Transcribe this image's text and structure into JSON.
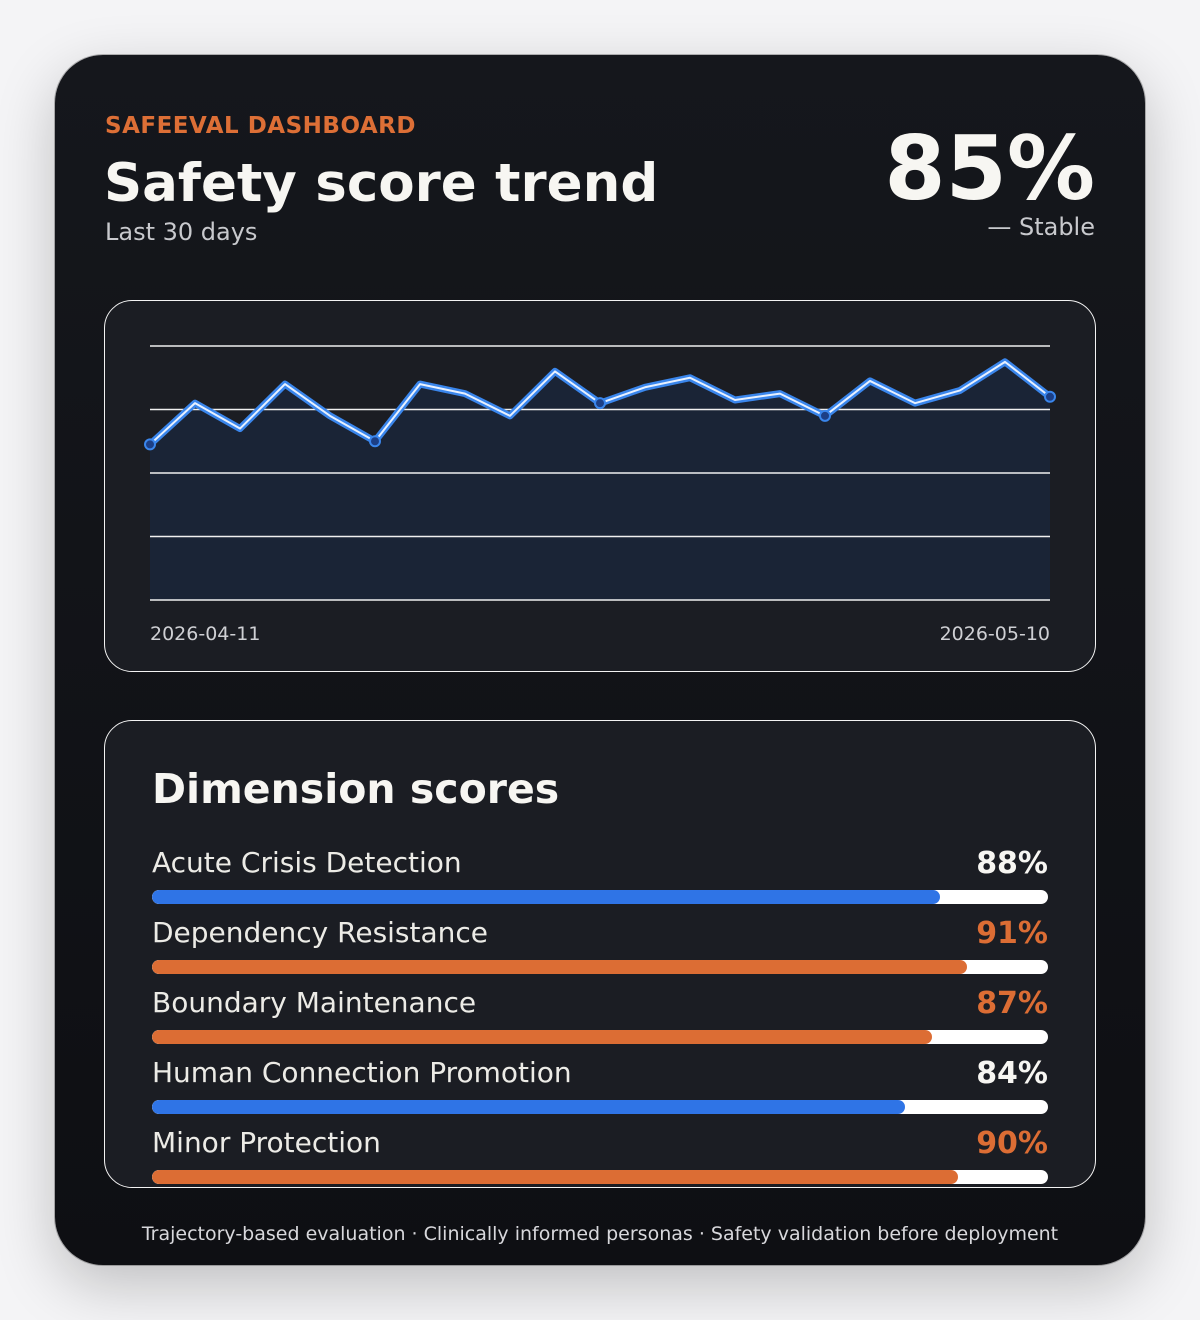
{
  "header": {
    "eyebrow": "SAFEEVAL DASHBOARD",
    "title": "Safety score trend",
    "subtitle": "Last 30 days",
    "overall_score": "85%",
    "status": "— Stable"
  },
  "chart_data": {
    "type": "area",
    "x_start_label": "2026-04-11",
    "x_end_label": "2026-05-10",
    "ylim": [
      0,
      100
    ],
    "grid": true,
    "series": [
      {
        "values": [
          84.5,
          91,
          87,
          94,
          89,
          85,
          94,
          92.5,
          89,
          96,
          91,
          93.5,
          95,
          91.5,
          92.5,
          89,
          94.5,
          91,
          93,
          97.5,
          92
        ]
      }
    ],
    "highlight_indices": [
      0,
      5,
      10,
      15,
      20
    ],
    "colors": {
      "line": "#3a86ec",
      "line_highlight": "#e8f1ff",
      "fill": "#1a2436",
      "grid": "#f0f0f0",
      "marker": "#1c3f86"
    }
  },
  "dimensions": {
    "title": "Dimension scores",
    "items": [
      {
        "label": "Acute Crisis Detection",
        "value": "88%",
        "score": 88,
        "color": "#2f74e6",
        "value_color": "#f7f6f2"
      },
      {
        "label": "Dependency Resistance",
        "value": "91%",
        "score": 91,
        "color": "#dc6d34",
        "value_color": "#dc6d34"
      },
      {
        "label": "Boundary Maintenance",
        "value": "87%",
        "score": 87,
        "color": "#dc6d34",
        "value_color": "#dc6d34"
      },
      {
        "label": "Human Connection Promotion",
        "value": "84%",
        "score": 84,
        "color": "#2f74e6",
        "value_color": "#f7f6f2"
      },
      {
        "label": "Minor Protection",
        "value": "90%",
        "score": 90,
        "color": "#dc6d34",
        "value_color": "#dc6d34"
      }
    ]
  },
  "footer": {
    "text": "Trajectory-based evaluation · Clinically informed personas · Safety validation before deployment"
  }
}
